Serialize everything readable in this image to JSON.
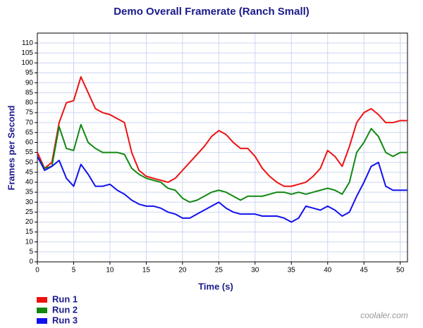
{
  "chart_data": {
    "type": "line",
    "title": "Demo Overall Framerate (Ranch Small)",
    "x_label": "Time (s)",
    "y_label": "Frames per Second",
    "watermark": "coolaler.com",
    "x": [
      0,
      1,
      2,
      3,
      4,
      5,
      6,
      7,
      8,
      9,
      10,
      11,
      12,
      13,
      14,
      15,
      16,
      17,
      18,
      19,
      20,
      21,
      22,
      23,
      24,
      25,
      26,
      27,
      28,
      29,
      30,
      31,
      32,
      33,
      34,
      35,
      36,
      37,
      38,
      39,
      40,
      41,
      42,
      43,
      44,
      45,
      46,
      47,
      48,
      49,
      50,
      51
    ],
    "series": [
      {
        "name": "Run 1",
        "color": "#ee1111",
        "values": [
          55,
          47,
          50,
          70,
          80,
          81,
          93,
          85,
          77,
          75,
          74,
          72,
          70,
          55,
          46,
          43,
          42,
          41,
          40,
          42,
          46,
          50,
          54,
          58,
          63,
          66,
          64,
          60,
          57,
          57,
          53,
          47,
          43,
          40,
          38,
          38,
          39,
          40,
          43,
          47,
          56,
          53,
          48,
          58,
          70,
          75,
          77,
          74,
          70,
          70,
          71,
          71
        ]
      },
      {
        "name": "Run 2",
        "color": "#118811",
        "values": [
          53,
          47,
          48,
          68,
          57,
          56,
          69,
          60,
          57,
          55,
          55,
          55,
          54,
          47,
          44,
          42,
          41,
          40,
          37,
          36,
          32,
          30,
          31,
          33,
          35,
          36,
          35,
          33,
          31,
          33,
          33,
          33,
          34,
          35,
          35,
          34,
          35,
          34,
          35,
          36,
          37,
          36,
          34,
          40,
          55,
          60,
          67,
          63,
          55,
          53,
          55,
          55
        ]
      },
      {
        "name": "Run 3",
        "color": "#1111ee",
        "values": [
          53,
          46,
          48,
          51,
          42,
          38,
          49,
          44,
          38,
          38,
          39,
          36,
          34,
          31,
          29,
          28,
          28,
          27,
          25,
          24,
          22,
          22,
          24,
          26,
          28,
          30,
          27,
          25,
          24,
          24,
          24,
          23,
          23,
          23,
          22,
          20,
          22,
          28,
          27,
          26,
          28,
          26,
          23,
          25,
          33,
          40,
          48,
          50,
          38,
          36,
          36,
          36
        ]
      }
    ],
    "xlim": [
      0,
      51
    ],
    "xticks": [
      0,
      5,
      10,
      15,
      20,
      25,
      30,
      35,
      40,
      45,
      50
    ],
    "ylim": [
      0,
      115
    ],
    "yticks": [
      0,
      5,
      10,
      15,
      20,
      25,
      30,
      35,
      40,
      45,
      50,
      55,
      60,
      65,
      70,
      75,
      80,
      85,
      90,
      95,
      100,
      105,
      110
    ],
    "grid": true,
    "legend": "bottom-left"
  }
}
